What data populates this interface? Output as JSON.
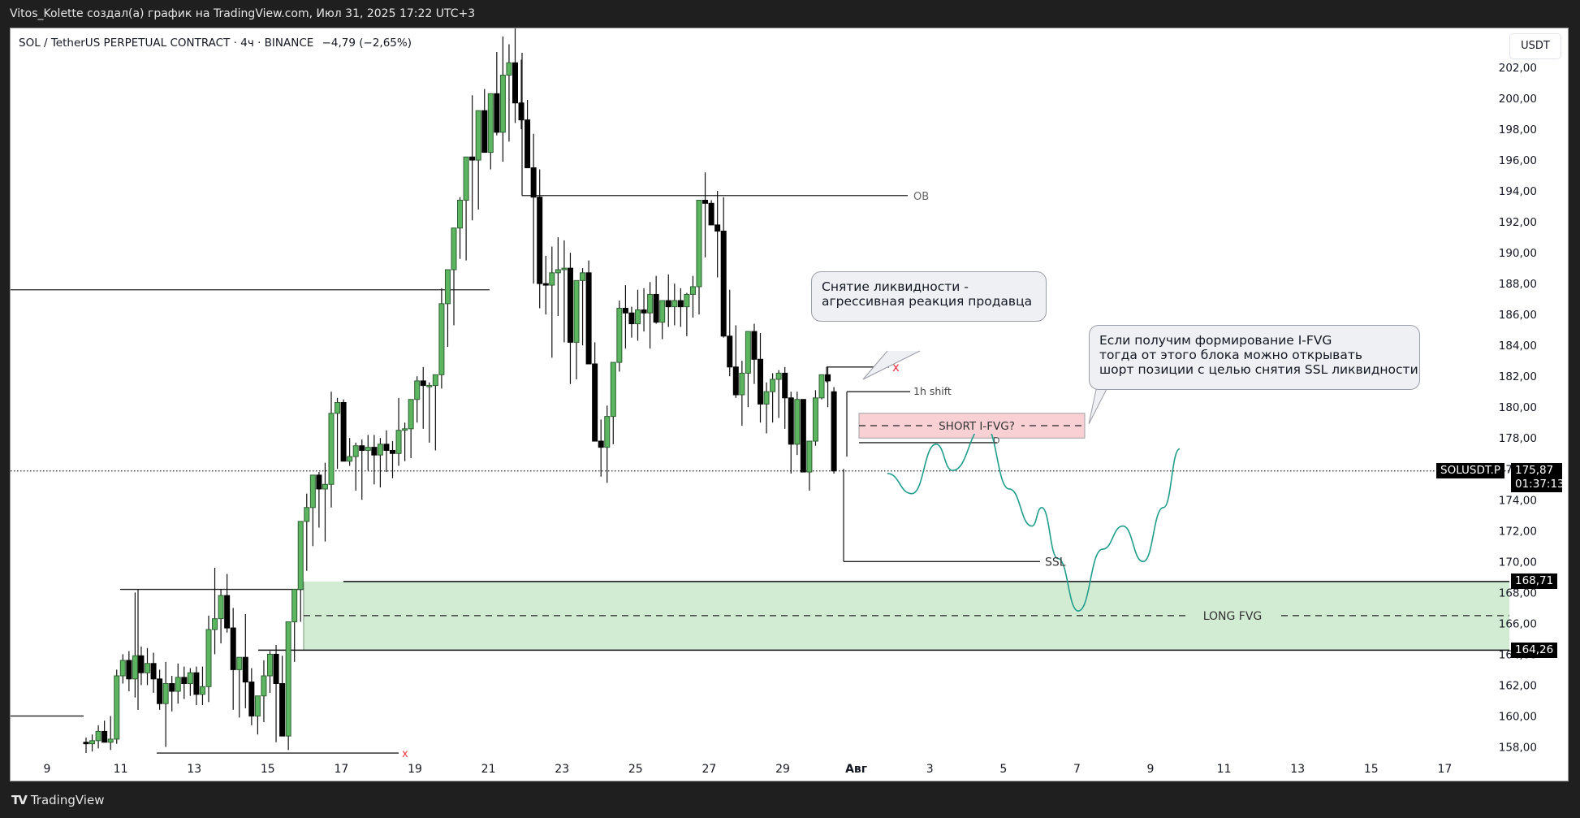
{
  "header": {
    "attribution": "Vitos_Kolette создал(а) график на TradingView.com, Июл 31, 2025 17:22 UTC+3"
  },
  "legend": {
    "symbol": "SOL / TetherUS PERPETUAL CONTRACT · 4ч · BINANCE",
    "change": "−4,79 (−2,65%)"
  },
  "price_axis": {
    "currency_button": "USDT",
    "ticks": [
      "202,00",
      "200,00",
      "198,00",
      "196,00",
      "194,00",
      "192,00",
      "190,00",
      "188,00",
      "186,00",
      "184,00",
      "182,00",
      "180,00",
      "178,00",
      "176,00",
      "174,00",
      "172,00",
      "170,00",
      "168,00",
      "166,00",
      "164,00",
      "162,00",
      "160,00",
      "158,00"
    ],
    "current_symbol": "SOLUSDT.P",
    "current_price": "175,87",
    "countdown": "01:37:13",
    "long_fvg_top": "168,71",
    "long_fvg_bottom": "164,26"
  },
  "time_axis": {
    "labels": [
      "9",
      "11",
      "13",
      "15",
      "17",
      "19",
      "21",
      "23",
      "25",
      "27",
      "29",
      "Авг",
      "3",
      "5",
      "7",
      "9",
      "11",
      "13",
      "15",
      "17"
    ]
  },
  "annotations": {
    "ob_label": "OB",
    "shift_label": "1h shift",
    "short_fvg_label": "SHORT I-FVG?",
    "d_label": "D",
    "ssl_label": "SSL",
    "long_fvg_label": "LONG FVG",
    "x_mark": "x",
    "callout_1": "Снятие ликвидности -\nагрессивная реакция продавца",
    "callout_2": "Если получим формирование I-FVG\nтогда от этого блока можно открывать\nшорт позиции с целью снятия SSL ликвидности"
  },
  "colors": {
    "bull_fill": "#5cb660",
    "bull_border": "#2f5f33",
    "bear": "#000000",
    "long_fvg_fill": "#d2ecd4",
    "short_fvg_fill": "#f9d0d4",
    "path": "#1f9e8c",
    "x_mark": "#f23645"
  },
  "footer": {
    "brand": "TradingView"
  },
  "chart_data": {
    "type": "candlestick",
    "title": "SOL / TetherUS PERPETUAL CONTRACT · 4ч · BINANCE",
    "xlabel": "",
    "ylabel": "USDT",
    "ylim": [
      157,
      204
    ],
    "x_tick_labels": [
      "9",
      "11",
      "13",
      "15",
      "17",
      "19",
      "21",
      "23",
      "25",
      "27",
      "29",
      "Авг",
      "3",
      "5",
      "7",
      "9",
      "11",
      "13",
      "15",
      "17"
    ],
    "current_price": 175.87,
    "levels": [
      {
        "name": "OB",
        "price": 193.7
      },
      {
        "name": "1h shift",
        "price": 181.0
      },
      {
        "name": "SSL",
        "price": 170.0
      },
      {
        "name": "LONG FVG top",
        "price": 168.71
      },
      {
        "name": "LONG FVG mid",
        "price": 166.5
      },
      {
        "name": "LONG FVG bottom",
        "price": 164.26
      },
      {
        "name": "SHORT I-FVG? top",
        "price": 179.6
      },
      {
        "name": "SHORT I-FVG? bottom",
        "price": 178.0
      }
    ],
    "candles_ohlc": [
      [
        158.3,
        158.6,
        157.6,
        158.2
      ],
      [
        158.2,
        158.8,
        157.7,
        158.4
      ],
      [
        158.4,
        159.4,
        157.9,
        159.0
      ],
      [
        159.0,
        159.7,
        158.6,
        158.3
      ],
      [
        158.3,
        160.0,
        157.8,
        158.5
      ],
      [
        158.5,
        163.0,
        158.2,
        162.6
      ],
      [
        162.6,
        164.0,
        162.1,
        163.6
      ],
      [
        163.6,
        164.2,
        161.6,
        162.4
      ],
      [
        162.4,
        168.0,
        161.2,
        163.9
      ],
      [
        163.9,
        164.5,
        162.0,
        162.8
      ],
      [
        162.8,
        164.4,
        162.0,
        163.4
      ],
      [
        163.4,
        164.1,
        161.5,
        162.4
      ],
      [
        162.4,
        163.0,
        160.4,
        160.8
      ],
      [
        160.8,
        163.5,
        158.0,
        162.1
      ],
      [
        162.1,
        162.6,
        160.3,
        161.6
      ],
      [
        161.6,
        163.4,
        160.8,
        162.5
      ],
      [
        162.5,
        163.2,
        161.1,
        162.1
      ],
      [
        162.1,
        163.1,
        161.3,
        162.8
      ],
      [
        162.8,
        163.2,
        160.7,
        161.4
      ],
      [
        161.4,
        163.2,
        160.7,
        161.9
      ],
      [
        161.9,
        166.5,
        160.9,
        165.6
      ],
      [
        165.6,
        169.6,
        164.0,
        166.3
      ],
      [
        166.3,
        168.2,
        164.7,
        167.8
      ],
      [
        167.8,
        169.2,
        165.4,
        165.7
      ],
      [
        165.7,
        167.0,
        160.4,
        163.0
      ],
      [
        163.0,
        163.3,
        159.9,
        163.8
      ],
      [
        163.8,
        166.6,
        160.5,
        162.2
      ],
      [
        162.2,
        163.1,
        159.4,
        160.0
      ],
      [
        160.0,
        161.3,
        158.8,
        161.3
      ],
      [
        161.3,
        163.6,
        159.6,
        162.6
      ],
      [
        162.6,
        164.2,
        161.5,
        164.0
      ],
      [
        164.0,
        164.6,
        158.3,
        162.1
      ],
      [
        162.1,
        163.9,
        159.7,
        158.7
      ],
      [
        158.7,
        165.5,
        157.8,
        166.1
      ],
      [
        166.1,
        167.9,
        163.5,
        168.2
      ],
      [
        168.2,
        170.2,
        166.1,
        172.6
      ],
      [
        172.6,
        174.4,
        169.4,
        173.5
      ],
      [
        173.5,
        174.0,
        171.0,
        175.6
      ],
      [
        175.6,
        175.8,
        172.2,
        174.7
      ],
      [
        174.7,
        176.4,
        171.3,
        175.0
      ],
      [
        175.0,
        181.0,
        173.5,
        179.6
      ],
      [
        179.6,
        180.6,
        176.0,
        180.3
      ],
      [
        180.3,
        180.5,
        177.3,
        176.5
      ],
      [
        176.5,
        178.0,
        176.2,
        176.8
      ],
      [
        176.8,
        177.7,
        174.6,
        177.5
      ],
      [
        177.5,
        177.9,
        174.0,
        177.2
      ],
      [
        177.2,
        178.2,
        175.9,
        177.4
      ],
      [
        177.4,
        178.2,
        175.0,
        176.9
      ],
      [
        176.9,
        178.0,
        174.8,
        177.6
      ],
      [
        177.6,
        178.5,
        175.8,
        177.2
      ],
      [
        177.2,
        177.8,
        175.4,
        177.0
      ],
      [
        177.0,
        180.6,
        176.2,
        178.5
      ],
      [
        178.5,
        179.0,
        176.5,
        178.6
      ],
      [
        178.6,
        179.2,
        176.7,
        180.5
      ],
      [
        180.5,
        182.0,
        179.0,
        181.7
      ],
      [
        181.7,
        182.6,
        178.6,
        181.4
      ],
      [
        181.4,
        181.6,
        177.7,
        181.4
      ],
      [
        181.4,
        181.7,
        177.2,
        182.1
      ],
      [
        182.1,
        187.7,
        181.2,
        186.7
      ],
      [
        186.7,
        187.6,
        183.9,
        188.9
      ],
      [
        188.9,
        190.8,
        185.3,
        191.6
      ],
      [
        191.6,
        193.6,
        189.6,
        193.4
      ],
      [
        193.4,
        194.8,
        189.5,
        196.2
      ],
      [
        196.2,
        200.2,
        192.1,
        196.0
      ],
      [
        196.0,
        196.4,
        192.8,
        199.2
      ],
      [
        199.2,
        200.6,
        196.7,
        196.5
      ],
      [
        196.5,
        199.9,
        195.4,
        200.3
      ],
      [
        200.3,
        203.0,
        197.6,
        197.8
      ],
      [
        197.8,
        204.0,
        195.9,
        201.5
      ],
      [
        201.5,
        203.5,
        197.2,
        202.3
      ],
      [
        202.3,
        206.0,
        198.4,
        199.7
      ],
      [
        199.7,
        202.5,
        198.0,
        198.6
      ],
      [
        198.6,
        199.9,
        196.4,
        195.5
      ],
      [
        195.5,
        197.7,
        188.0,
        193.6
      ],
      [
        193.6,
        195.4,
        186.4,
        188.0
      ],
      [
        188.0,
        189.8,
        186.0,
        187.9
      ],
      [
        187.9,
        190.4,
        183.2,
        188.7
      ],
      [
        188.7,
        191.0,
        185.9,
        188.9
      ],
      [
        188.9,
        190.8,
        184.2,
        189.0
      ],
      [
        189.0,
        190.0,
        181.5,
        184.2
      ],
      [
        184.2,
        186.9,
        181.8,
        188.2
      ],
      [
        188.2,
        189.0,
        184.0,
        188.7
      ],
      [
        188.7,
        189.5,
        186.6,
        182.8
      ],
      [
        182.8,
        184.2,
        178.6,
        177.8
      ],
      [
        177.8,
        179.2,
        175.5,
        177.4
      ],
      [
        177.4,
        180.1,
        175.1,
        179.4
      ],
      [
        179.4,
        182.3,
        177.6,
        182.9
      ],
      [
        182.9,
        186.9,
        182.3,
        186.4
      ],
      [
        186.4,
        187.9,
        183.8,
        186.1
      ],
      [
        186.1,
        186.5,
        184.5,
        185.4
      ],
      [
        185.4,
        187.6,
        184.3,
        186.3
      ],
      [
        186.3,
        187.7,
        184.9,
        186.1
      ],
      [
        186.1,
        188.1,
        183.8,
        187.3
      ],
      [
        187.3,
        188.5,
        185.4,
        185.5
      ],
      [
        185.5,
        186.0,
        184.4,
        186.9
      ],
      [
        186.9,
        188.6,
        185.2,
        186.5
      ],
      [
        186.5,
        188.0,
        185.3,
        186.9
      ],
      [
        186.9,
        187.7,
        185.2,
        186.5
      ],
      [
        186.5,
        187.4,
        184.6,
        187.3
      ],
      [
        187.3,
        188.5,
        185.8,
        187.8
      ],
      [
        187.8,
        189.7,
        186.0,
        193.4
      ],
      [
        193.4,
        195.2,
        189.7,
        193.2
      ],
      [
        193.2,
        193.4,
        192.0,
        191.8
      ],
      [
        191.8,
        194.0,
        188.4,
        191.4
      ],
      [
        191.4,
        193.6,
        184.5,
        184.6
      ],
      [
        184.6,
        187.6,
        182.0,
        182.6
      ],
      [
        182.6,
        185.3,
        180.6,
        180.8
      ],
      [
        180.8,
        183.0,
        178.8,
        182.2
      ],
      [
        182.2,
        183.2,
        180.0,
        184.9
      ],
      [
        184.9,
        185.4,
        181.5,
        183.1
      ],
      [
        183.1,
        184.8,
        179.0,
        180.2
      ],
      [
        180.2,
        181.6,
        178.3,
        181.0
      ],
      [
        181.0,
        182.2,
        179.0,
        181.8
      ],
      [
        181.8,
        182.4,
        179.3,
        182.2
      ],
      [
        182.2,
        182.6,
        178.6,
        180.6
      ],
      [
        180.6,
        181.0,
        175.7,
        177.6
      ],
      [
        177.6,
        181.0,
        176.9,
        180.5
      ],
      [
        180.5,
        180.0,
        176.0,
        175.8
      ],
      [
        175.8,
        177.8,
        174.6,
        177.8
      ],
      [
        177.8,
        181.1,
        177.5,
        180.6
      ],
      [
        180.6,
        182.1,
        180.5,
        182.1
      ],
      [
        182.1,
        182.6,
        180.0,
        181.7
      ],
      [
        181.0,
        181.3,
        175.7,
        175.87
      ]
    ],
    "projection_path_desc": "hand-drawn expected path: dips to ~174.5, retests ~178.8 (SHORT I-FVG), drops through SSL to ~166.8 in LONG FVG, then rallies to ~177.5"
  }
}
